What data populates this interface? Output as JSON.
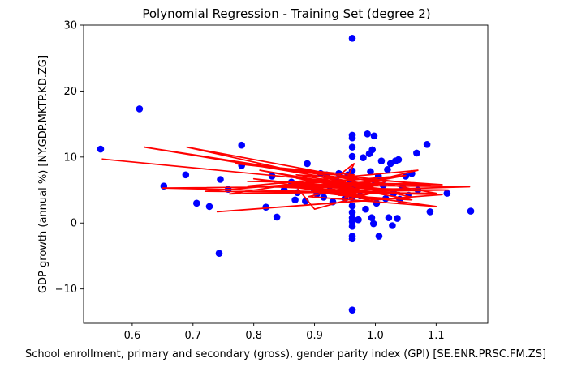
{
  "chart_data": {
    "type": "scatter",
    "title": "Polynomial Regression - Training Set (degree 2)",
    "xlabel": "School enrollment, primary and secondary (gross), gender parity index (GPI) [SE.ENR.PRSC.FM.ZS]",
    "ylabel": "GDP growth (annual %) [NY.GDP.MKTP.KD.ZG]",
    "xlim": [
      0.52,
      1.185
    ],
    "ylim": [
      -15.2,
      30
    ],
    "xticks": [
      0.6,
      0.7,
      0.8,
      0.9,
      1.0,
      1.1
    ],
    "xtick_labels": [
      "0.6",
      "0.7",
      "0.8",
      "0.9",
      "1.0",
      "1.1"
    ],
    "yticks": [
      -10,
      0,
      10,
      20,
      30
    ],
    "ytick_labels": [
      "−10",
      "0",
      "10",
      "20",
      "30"
    ],
    "grid": false,
    "colors": {
      "points": "#0000ff",
      "line": "#ff0000"
    },
    "points": [
      [
        0.548,
        11.2
      ],
      [
        0.612,
        17.3
      ],
      [
        0.652,
        5.6
      ],
      [
        0.688,
        7.3
      ],
      [
        0.706,
        3.0
      ],
      [
        0.727,
        2.5
      ],
      [
        0.743,
        -4.6
      ],
      [
        0.745,
        6.6
      ],
      [
        0.758,
        5.1
      ],
      [
        0.78,
        11.8
      ],
      [
        0.78,
        8.7
      ],
      [
        0.82,
        2.4
      ],
      [
        0.83,
        7.1
      ],
      [
        0.838,
        0.9
      ],
      [
        0.85,
        5.0
      ],
      [
        0.862,
        6.2
      ],
      [
        0.868,
        3.5
      ],
      [
        0.872,
        4.6
      ],
      [
        0.885,
        3.3
      ],
      [
        0.888,
        9.0
      ],
      [
        0.892,
        6.1
      ],
      [
        0.898,
        5.3
      ],
      [
        0.904,
        4.4
      ],
      [
        0.91,
        7.5
      ],
      [
        0.915,
        3.9
      ],
      [
        0.92,
        7.3
      ],
      [
        0.925,
        5.6
      ],
      [
        0.93,
        3.2
      ],
      [
        0.935,
        6.6
      ],
      [
        0.94,
        7.5
      ],
      [
        0.945,
        4.9
      ],
      [
        0.95,
        3.7
      ],
      [
        0.955,
        7.3
      ],
      [
        0.958,
        6.1
      ],
      [
        0.962,
        28.0
      ],
      [
        0.962,
        13.3
      ],
      [
        0.962,
        12.9
      ],
      [
        0.962,
        11.5
      ],
      [
        0.962,
        10.1
      ],
      [
        0.962,
        7.9
      ],
      [
        0.962,
        6.3
      ],
      [
        0.962,
        5.0
      ],
      [
        0.962,
        3.8
      ],
      [
        0.962,
        2.6
      ],
      [
        0.962,
        1.6
      ],
      [
        0.962,
        0.8
      ],
      [
        0.962,
        0.2
      ],
      [
        0.962,
        -0.5
      ],
      [
        0.962,
        -2.0
      ],
      [
        0.962,
        -2.4
      ],
      [
        0.962,
        -13.2
      ],
      [
        0.968,
        5.4
      ],
      [
        0.972,
        0.5
      ],
      [
        0.975,
        4.1
      ],
      [
        0.98,
        9.9
      ],
      [
        0.984,
        2.1
      ],
      [
        0.987,
        13.5
      ],
      [
        0.99,
        10.5
      ],
      [
        0.992,
        7.8
      ],
      [
        0.994,
        0.8
      ],
      [
        0.995,
        11.1
      ],
      [
        0.997,
        -0.1
      ],
      [
        0.998,
        13.2
      ],
      [
        1.0,
        6.2
      ],
      [
        1.002,
        3.0
      ],
      [
        1.005,
        7.1
      ],
      [
        1.006,
        -2.0
      ],
      [
        1.01,
        9.4
      ],
      [
        1.013,
        5.7
      ],
      [
        1.017,
        3.7
      ],
      [
        1.02,
        8.1
      ],
      [
        1.022,
        0.8
      ],
      [
        1.025,
        9.0
      ],
      [
        1.028,
        -0.4
      ],
      [
        1.03,
        4.5
      ],
      [
        1.033,
        9.4
      ],
      [
        1.036,
        0.7
      ],
      [
        1.038,
        9.6
      ],
      [
        1.04,
        3.6
      ],
      [
        1.045,
        5.5
      ],
      [
        1.05,
        7.1
      ],
      [
        1.055,
        4.2
      ],
      [
        1.06,
        7.5
      ],
      [
        1.068,
        10.6
      ],
      [
        1.07,
        5.0
      ],
      [
        1.085,
        11.9
      ],
      [
        1.09,
        1.7
      ],
      [
        1.118,
        4.5
      ],
      [
        1.157,
        1.8
      ]
    ],
    "fit_line": [
      [
        0.55,
        9.7
      ],
      [
        1.0,
        5.7
      ],
      [
        0.62,
        11.5
      ],
      [
        0.962,
        6.6
      ],
      [
        0.72,
        4.8
      ],
      [
        1.1,
        4.5
      ],
      [
        0.69,
        11.5
      ],
      [
        1.06,
        3.9
      ],
      [
        0.74,
        1.7
      ],
      [
        1.11,
        4.3
      ],
      [
        0.65,
        5.3
      ],
      [
        1.09,
        5.7
      ],
      [
        0.77,
        9.0
      ],
      [
        0.965,
        7.3
      ],
      [
        0.76,
        4.4
      ],
      [
        1.155,
        5.5
      ],
      [
        0.85,
        5.8
      ],
      [
        1.07,
        5.9
      ],
      [
        0.79,
        6.3
      ],
      [
        1.11,
        5.8
      ],
      [
        0.87,
        7.3
      ],
      [
        1.03,
        4.8
      ],
      [
        0.82,
        4.5
      ],
      [
        1.12,
        5.0
      ],
      [
        0.79,
        5.6
      ],
      [
        1.07,
        8.0
      ],
      [
        0.89,
        4.0
      ],
      [
        1.1,
        2.5
      ],
      [
        0.88,
        5.3
      ],
      [
        1.04,
        4.4
      ],
      [
        0.81,
        8.0
      ],
      [
        0.965,
        5.3
      ],
      [
        0.87,
        6.8
      ],
      [
        1.06,
        3.5
      ],
      [
        0.94,
        4.2
      ],
      [
        0.965,
        9.0
      ],
      [
        0.91,
        5.1
      ],
      [
        1.04,
        4.6
      ],
      [
        0.83,
        5.5
      ],
      [
        1.05,
        7.2
      ],
      [
        0.9,
        4.7
      ],
      [
        1.0,
        3.6
      ],
      [
        0.86,
        5.5
      ],
      [
        1.02,
        6.4
      ],
      [
        0.95,
        3.9
      ],
      [
        1.03,
        5.0
      ],
      [
        0.92,
        6.1
      ],
      [
        0.98,
        4.9
      ],
      [
        0.8,
        6.7
      ],
      [
        1.0,
        3.7
      ],
      [
        0.87,
        5.9
      ],
      [
        1.03,
        4.4
      ],
      [
        0.91,
        6.5
      ],
      [
        0.99,
        3.5
      ],
      [
        0.87,
        5.5
      ],
      [
        0.9,
        2.1
      ],
      [
        1.02,
        5.2
      ]
    ]
  }
}
